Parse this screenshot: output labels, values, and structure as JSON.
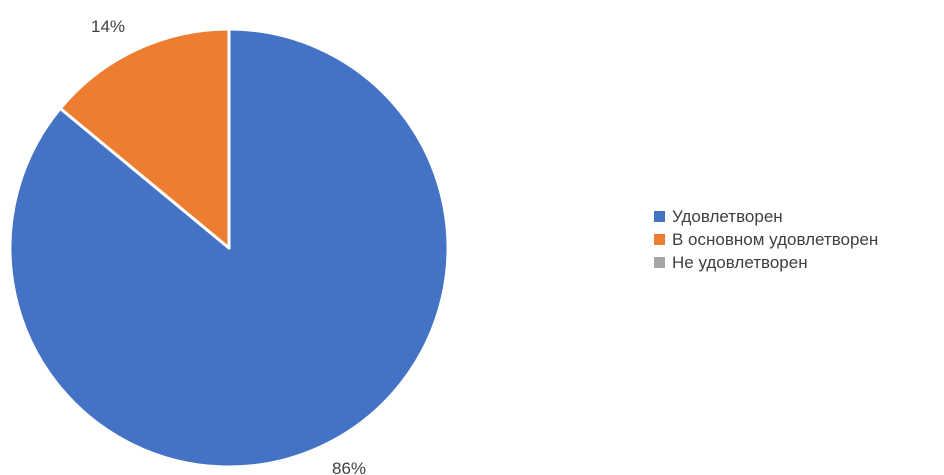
{
  "chart_data": {
    "type": "pie",
    "categories": [
      "Удовлетворен",
      "В основном удовлетворен",
      "Не удовлетворен"
    ],
    "values": [
      86,
      14,
      0
    ],
    "data_labels": [
      "86%",
      "14%",
      ""
    ],
    "colors": [
      "#4472C4",
      "#ED7D31",
      "#A5A5A5"
    ],
    "legend_position": "right",
    "title": ""
  }
}
